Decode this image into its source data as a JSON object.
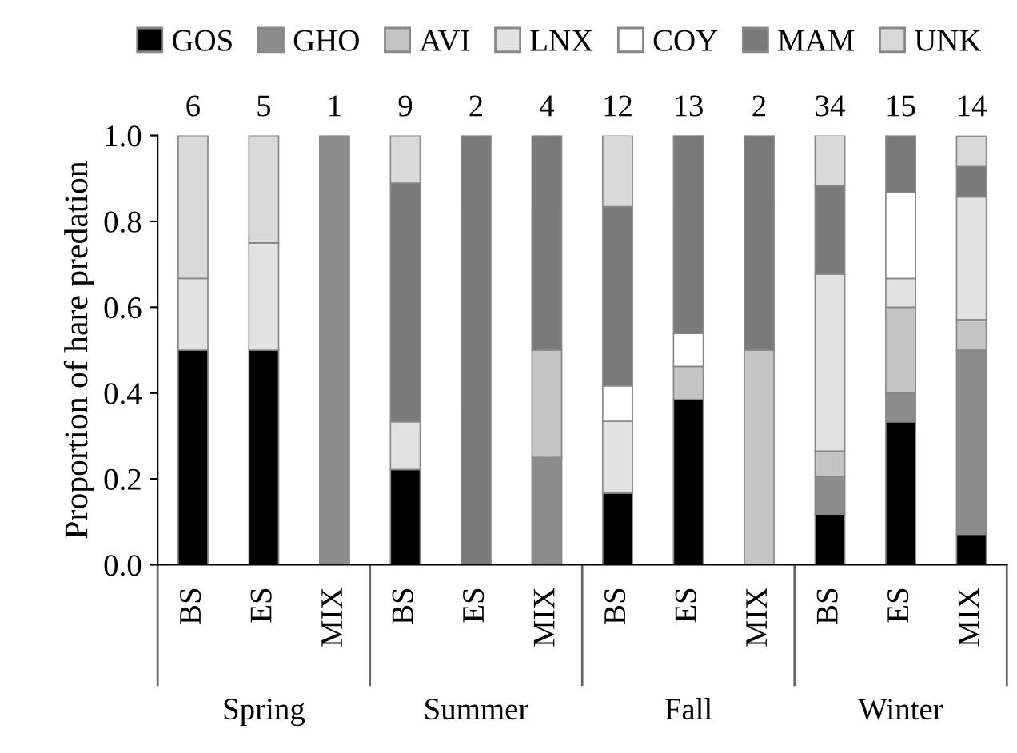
{
  "chart_data": {
    "type": "bar",
    "stacked": true,
    "ylabel": "Proportion of hare predation",
    "categories": [
      "BS",
      "ES",
      "MIX",
      "BS",
      "ES",
      "MIX",
      "BS",
      "ES",
      "MIX",
      "BS",
      "ES",
      "MIX"
    ],
    "series": [
      {
        "name": "GOS",
        "color": "#000000",
        "values": [
          0.5,
          0.5,
          0,
          0.222,
          0,
          0,
          0.167,
          0.385,
          0,
          0.118,
          0.333,
          0.071
        ]
      },
      {
        "name": "GHO",
        "color": "#8c8c8c",
        "values": [
          0,
          0,
          1.0,
          0,
          0,
          0.25,
          0,
          0,
          0,
          0.088,
          0.067,
          0.429
        ]
      },
      {
        "name": "AVI",
        "color": "#c4c4c4",
        "values": [
          0,
          0,
          0,
          0,
          0,
          0.25,
          0,
          0.077,
          0.5,
          0.059,
          0.2,
          0.071
        ]
      },
      {
        "name": "LNX",
        "color": "#e2e2e2",
        "values": [
          0.167,
          0.25,
          0,
          0.111,
          0,
          0,
          0.167,
          0,
          0,
          0.412,
          0.067,
          0.286
        ]
      },
      {
        "name": "COY",
        "color": "#ffffff",
        "values": [
          0,
          0,
          0,
          0,
          0,
          0,
          0.083,
          0.077,
          0,
          0,
          0.2,
          0
        ]
      },
      {
        "name": "MAM",
        "color": "#7a7a7a",
        "values": [
          0,
          0,
          0,
          0.556,
          1.0,
          0.5,
          0.417,
          0.462,
          0.5,
          0.206,
          0.133,
          0.071
        ]
      },
      {
        "name": "UNK",
        "color": "#d9d9d9",
        "values": [
          0.333,
          0.25,
          0,
          0.111,
          0,
          0,
          0.167,
          0,
          0,
          0.118,
          0,
          0.071
        ]
      }
    ],
    "annotations": [
      "6",
      "5",
      "1",
      "9",
      "2",
      "4",
      "12",
      "13",
      "2",
      "34",
      "15",
      "14",
      "Spring",
      "Summer",
      "Fall",
      "Winter"
    ],
    "ylim": [
      0,
      1.0
    ],
    "yticks": [
      {
        "value": 0,
        "label": "0.0"
      },
      {
        "value": 0.2,
        "label": "0.2"
      },
      {
        "value": 0.4,
        "label": "0.4"
      },
      {
        "value": 0.6,
        "label": "0.6"
      },
      {
        "value": 0.8,
        "label": "0.8"
      },
      {
        "value": 1.0,
        "label": "1.0"
      }
    ],
    "grid": false,
    "legend": "top"
  }
}
